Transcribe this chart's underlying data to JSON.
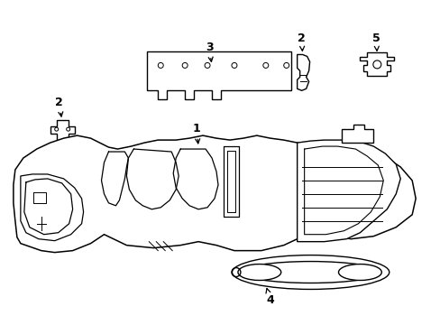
{
  "bg_color": "#ffffff",
  "line_color": "#000000",
  "lw": 1.0,
  "fig_w": 4.89,
  "fig_h": 3.6,
  "dpi": 100
}
